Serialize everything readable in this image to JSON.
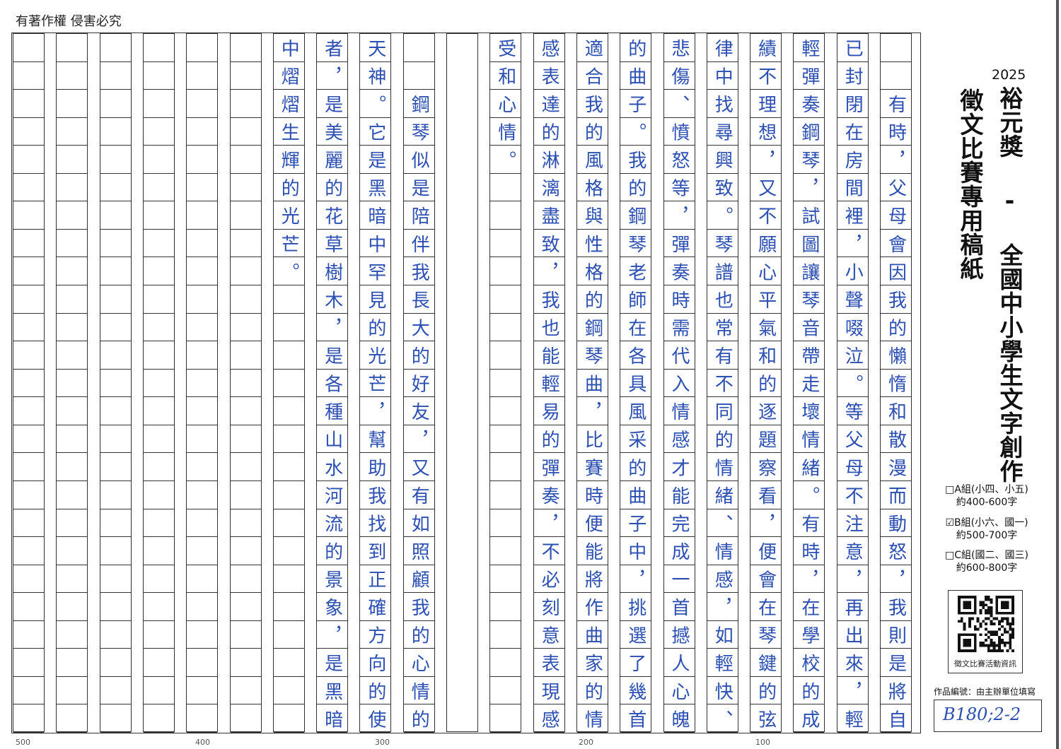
{
  "header": {
    "copyright": "有著作權  侵害必究"
  },
  "form": {
    "year": "2025",
    "title": "裕元獎 - 全國中小學生文字創作",
    "subtitle": "徵文比賽專用稿紙",
    "groups": [
      {
        "label": "□A組(小四、小五)",
        "range": "約400-600字",
        "checked": false
      },
      {
        "label": "☑B組(小六、國一)",
        "range": "約500-700字",
        "checked": true
      },
      {
        "label": "□C組(國二、國三)",
        "range": "約600-800字",
        "checked": false
      }
    ],
    "qr_label": "徵文比賽活動資訊",
    "id_label": "作品編號：由主辦單位填寫",
    "id_value": "B180;2-2"
  },
  "ink_color": "#2b4fb3",
  "manuscript": {
    "columns_right_to_left": [
      "　　有時，父母會因我的懶惰和散漫而動怒，我則是將自",
      "已封閉在房間裡，小聲啜泣。等父母不注意，再出來，輕",
      "輕彈奏鋼琴，試圖讓琴音帶走壞情緒。有時，在學校的成",
      "績不理想，又不願心平氣和的逐題察看，便會在琴鍵的弦",
      "律中找尋興致。琴譜也常有不同的情緒、情感，如輕快、",
      "悲傷、憤怒等，彈奏時需代入情感才能完成一首撼人心魄",
      "的曲子。我的鋼琴老師在各具風采的曲子中，挑選了幾首",
      "適合我的風格與性格的鋼琴曲，比賽時便能將作曲家的情",
      "感表達的淋漓盡致，我也能輕易的彈奏，不必刻意表現感",
      "受和心情。",
      "",
      "　　鋼琴似是陪伴我長大的好友，又有如照顧我的心情的",
      "天神。它是黑暗中罕見的光芒，幫助我找到正確方向的使",
      "者，是美麗的花草樹木，是各種山水河流的景象，是黑暗",
      "中熠熠生輝的光芒。",
      "",
      "",
      "",
      "",
      "",
      ""
    ]
  },
  "ruler": [
    "500",
    "400",
    "300",
    "200",
    "100"
  ]
}
